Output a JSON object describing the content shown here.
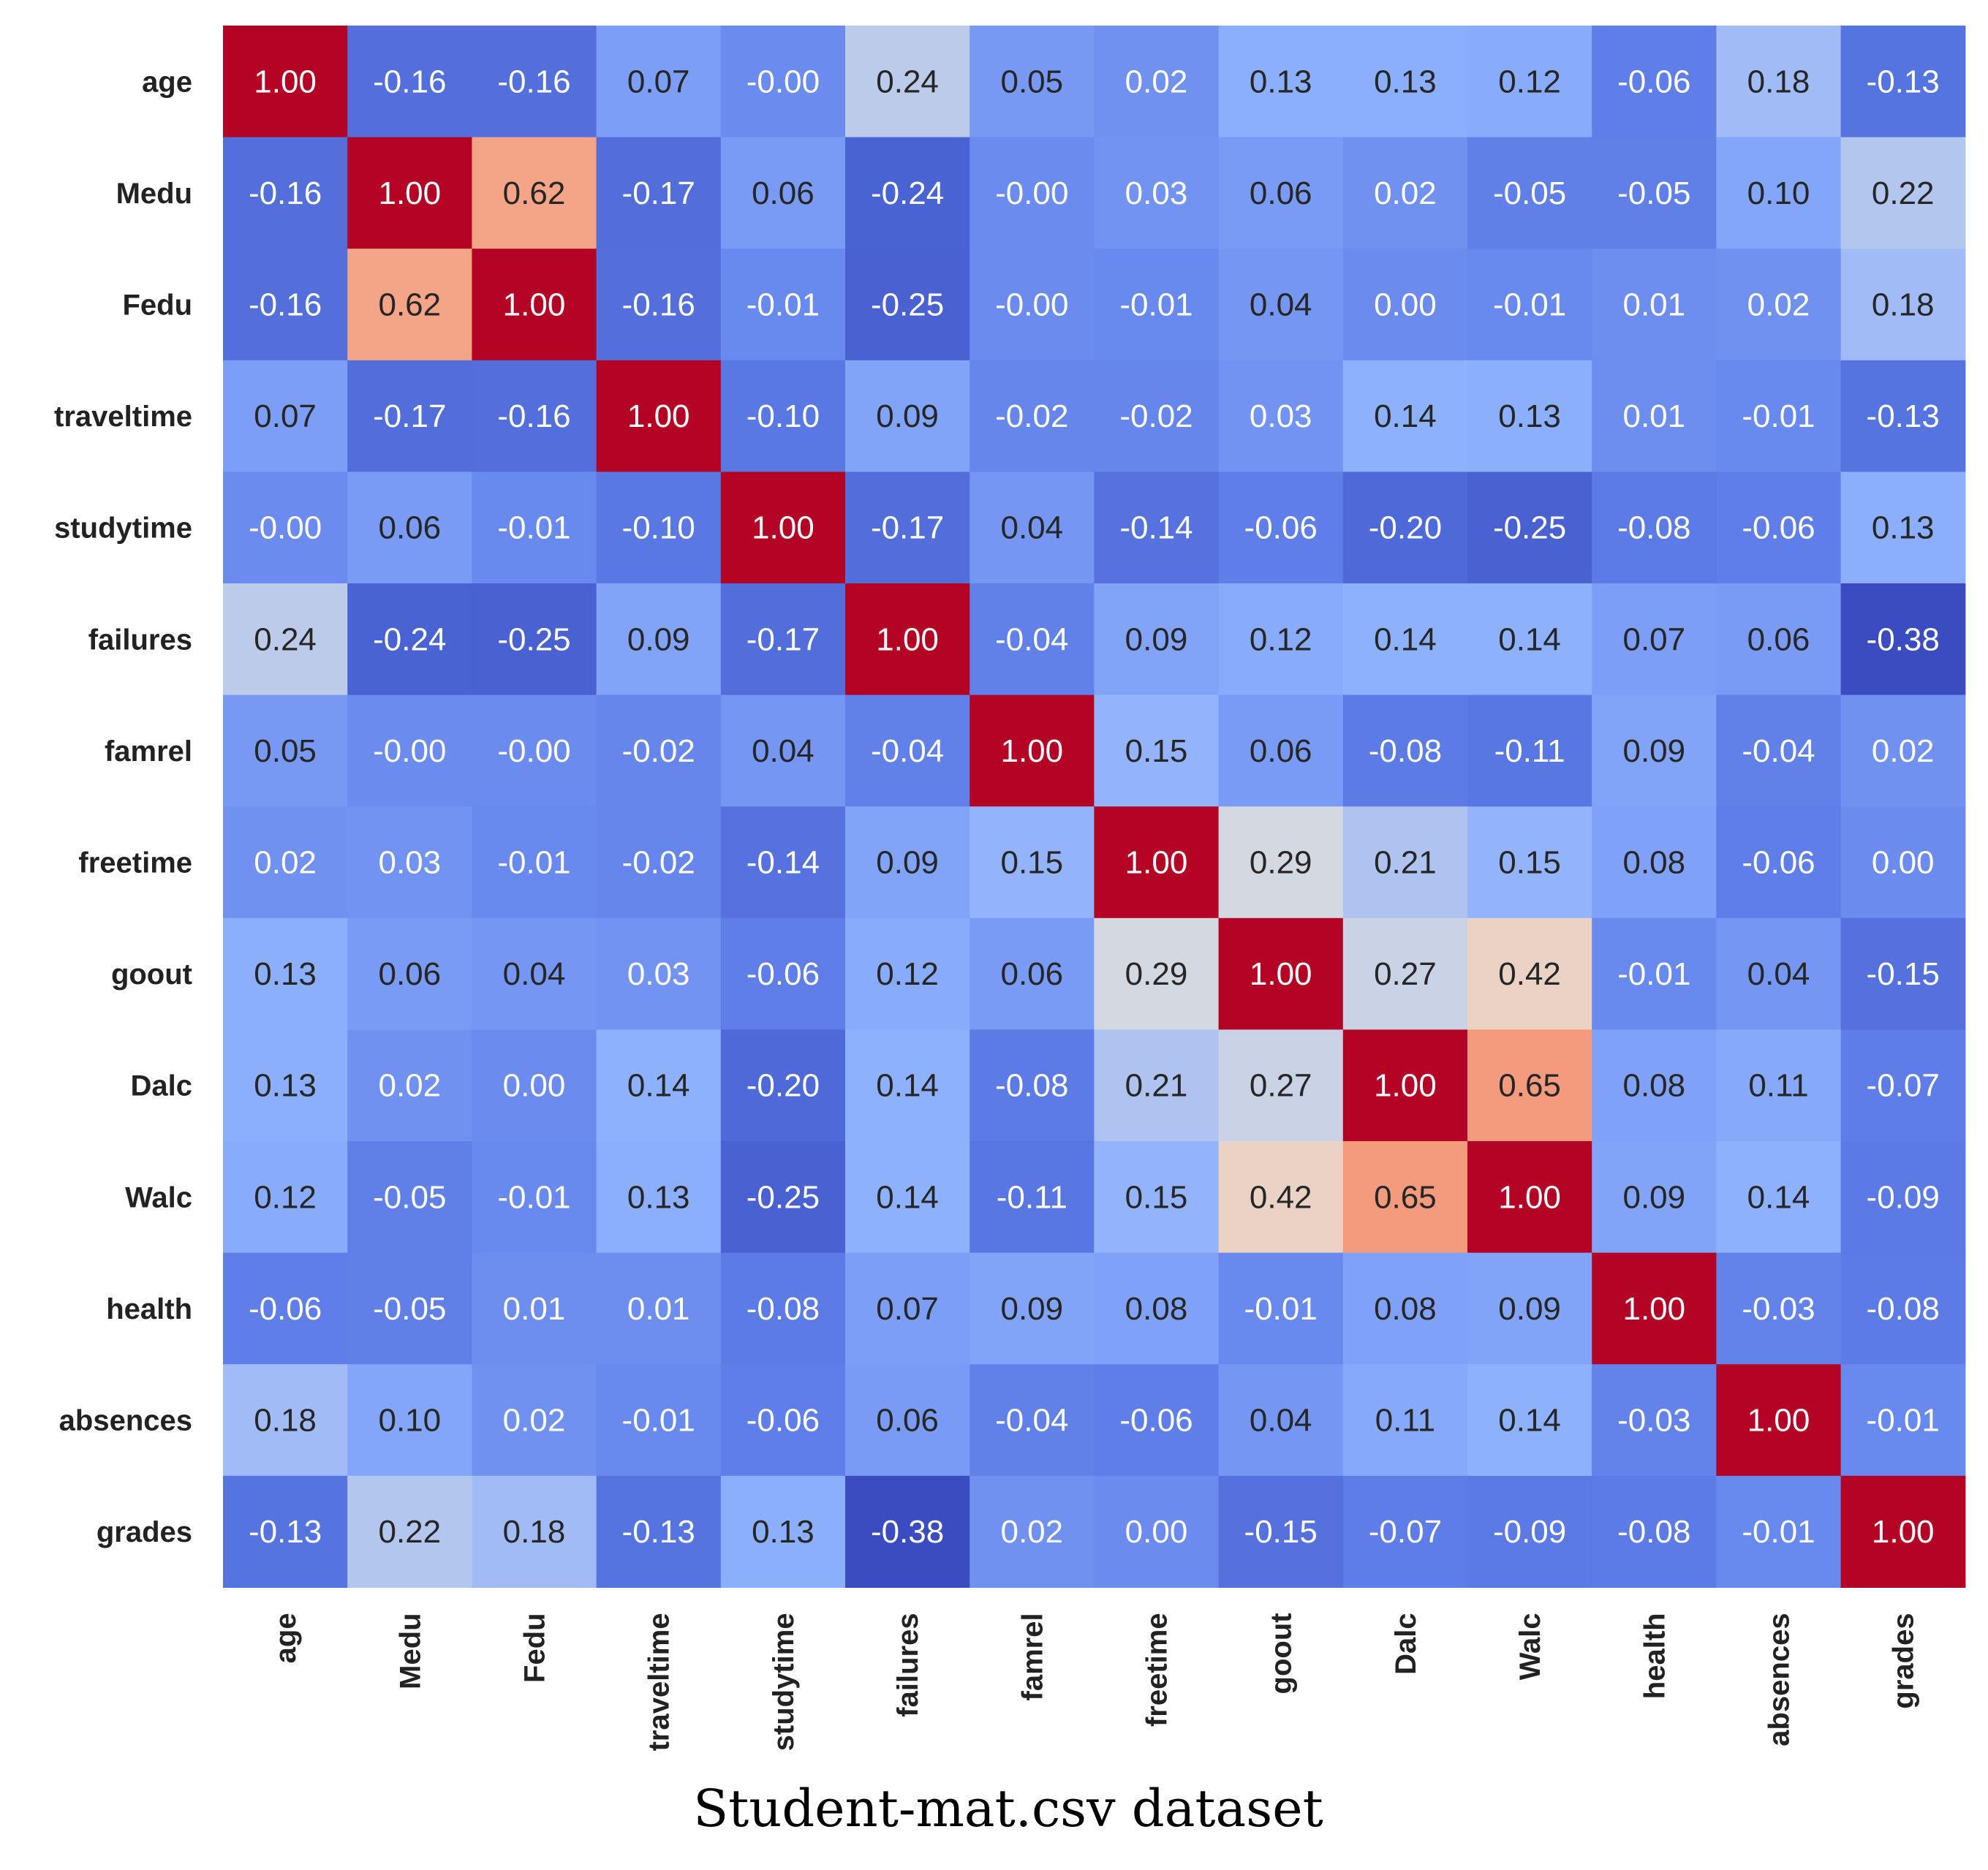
{
  "chart_data": {
    "type": "heatmap",
    "title": "",
    "caption": "Student-mat.csv dataset",
    "colormap": "coolwarm",
    "vmin": -0.38,
    "vmax": 1.0,
    "row_labels": [
      "age",
      "Medu",
      "Fedu",
      "traveltime",
      "studytime",
      "failures",
      "famrel",
      "freetime",
      "goout",
      "Dalc",
      "Walc",
      "health",
      "absences",
      "grades"
    ],
    "col_labels": [
      "age",
      "Medu",
      "Fedu",
      "traveltime",
      "studytime",
      "failures",
      "famrel",
      "freetime",
      "goout",
      "Dalc",
      "Walc",
      "health",
      "absences",
      "grades"
    ],
    "values": [
      [
        1.0,
        -0.16,
        -0.16,
        0.07,
        -0.0,
        0.24,
        0.05,
        0.02,
        0.13,
        0.13,
        0.12,
        -0.06,
        0.18,
        -0.13
      ],
      [
        -0.16,
        1.0,
        0.62,
        -0.17,
        0.06,
        -0.24,
        -0.0,
        0.03,
        0.06,
        0.02,
        -0.05,
        -0.05,
        0.1,
        0.22
      ],
      [
        -0.16,
        0.62,
        1.0,
        -0.16,
        -0.01,
        -0.25,
        -0.0,
        -0.01,
        0.04,
        0.0,
        -0.01,
        0.01,
        0.02,
        0.18
      ],
      [
        0.07,
        -0.17,
        -0.16,
        1.0,
        -0.1,
        0.09,
        -0.02,
        -0.02,
        0.03,
        0.14,
        0.13,
        0.01,
        -0.01,
        -0.13
      ],
      [
        -0.0,
        0.06,
        -0.01,
        -0.1,
        1.0,
        -0.17,
        0.04,
        -0.14,
        -0.06,
        -0.2,
        -0.25,
        -0.08,
        -0.06,
        0.13
      ],
      [
        0.24,
        -0.24,
        -0.25,
        0.09,
        -0.17,
        1.0,
        -0.04,
        0.09,
        0.12,
        0.14,
        0.14,
        0.07,
        0.06,
        -0.38
      ],
      [
        0.05,
        -0.0,
        -0.0,
        -0.02,
        0.04,
        -0.04,
        1.0,
        0.15,
        0.06,
        -0.08,
        -0.11,
        0.09,
        -0.04,
        0.02
      ],
      [
        0.02,
        0.03,
        -0.01,
        -0.02,
        -0.14,
        0.09,
        0.15,
        1.0,
        0.29,
        0.21,
        0.15,
        0.08,
        -0.06,
        0.0
      ],
      [
        0.13,
        0.06,
        0.04,
        0.03,
        -0.06,
        0.12,
        0.06,
        0.29,
        1.0,
        0.27,
        0.42,
        -0.01,
        0.04,
        -0.15
      ],
      [
        0.13,
        0.02,
        0.0,
        0.14,
        -0.2,
        0.14,
        -0.08,
        0.21,
        0.27,
        1.0,
        0.65,
        0.08,
        0.11,
        -0.07
      ],
      [
        0.12,
        -0.05,
        -0.01,
        0.13,
        -0.25,
        0.14,
        -0.11,
        0.15,
        0.42,
        0.65,
        1.0,
        0.09,
        0.14,
        -0.09
      ],
      [
        -0.06,
        -0.05,
        0.01,
        0.01,
        -0.08,
        0.07,
        0.09,
        0.08,
        -0.01,
        0.08,
        0.09,
        1.0,
        -0.03,
        -0.08
      ],
      [
        0.18,
        0.1,
        0.02,
        -0.01,
        -0.06,
        0.06,
        -0.04,
        -0.06,
        0.04,
        0.11,
        0.14,
        -0.03,
        1.0,
        -0.01
      ],
      [
        -0.13,
        0.22,
        0.18,
        -0.13,
        0.13,
        -0.38,
        0.02,
        0.0,
        -0.15,
        -0.07,
        -0.09,
        -0.08,
        -0.01,
        1.0
      ]
    ],
    "value_labels": [
      [
        "1.00",
        "-0.16",
        "-0.16",
        "0.07",
        "-0.00",
        "0.24",
        "0.05",
        "0.02",
        "0.13",
        "0.13",
        "0.12",
        "-0.06",
        "0.18",
        "-0.13"
      ],
      [
        "-0.16",
        "1.00",
        "0.62",
        "-0.17",
        "0.06",
        "-0.24",
        "-0.00",
        "0.03",
        "0.06",
        "0.02",
        "-0.05",
        "-0.05",
        "0.10",
        "0.22"
      ],
      [
        "-0.16",
        "0.62",
        "1.00",
        "-0.16",
        "-0.01",
        "-0.25",
        "-0.00",
        "-0.01",
        "0.04",
        "0.00",
        "-0.01",
        "0.01",
        "0.02",
        "0.18"
      ],
      [
        "0.07",
        "-0.17",
        "-0.16",
        "1.00",
        "-0.10",
        "0.09",
        "-0.02",
        "-0.02",
        "0.03",
        "0.14",
        "0.13",
        "0.01",
        "-0.01",
        "-0.13"
      ],
      [
        "-0.00",
        "0.06",
        "-0.01",
        "-0.10",
        "1.00",
        "-0.17",
        "0.04",
        "-0.14",
        "-0.06",
        "-0.20",
        "-0.25",
        "-0.08",
        "-0.06",
        "0.13"
      ],
      [
        "0.24",
        "-0.24",
        "-0.25",
        "0.09",
        "-0.17",
        "1.00",
        "-0.04",
        "0.09",
        "0.12",
        "0.14",
        "0.14",
        "0.07",
        "0.06",
        "-0.38"
      ],
      [
        "0.05",
        "-0.00",
        "-0.00",
        "-0.02",
        "0.04",
        "-0.04",
        "1.00",
        "0.15",
        "0.06",
        "-0.08",
        "-0.11",
        "0.09",
        "-0.04",
        "0.02"
      ],
      [
        "0.02",
        "0.03",
        "-0.01",
        "-0.02",
        "-0.14",
        "0.09",
        "0.15",
        "1.00",
        "0.29",
        "0.21",
        "0.15",
        "0.08",
        "-0.06",
        "0.00"
      ],
      [
        "0.13",
        "0.06",
        "0.04",
        "0.03",
        "-0.06",
        "0.12",
        "0.06",
        "0.29",
        "1.00",
        "0.27",
        "0.42",
        "-0.01",
        "0.04",
        "-0.15"
      ],
      [
        "0.13",
        "0.02",
        "0.00",
        "0.14",
        "-0.20",
        "0.14",
        "-0.08",
        "0.21",
        "0.27",
        "1.00",
        "0.65",
        "0.08",
        "0.11",
        "-0.07"
      ],
      [
        "0.12",
        "-0.05",
        "-0.01",
        "0.13",
        "-0.25",
        "0.14",
        "-0.11",
        "0.15",
        "0.42",
        "0.65",
        "1.00",
        "0.09",
        "0.14",
        "-0.09"
      ],
      [
        "-0.06",
        "-0.05",
        "0.01",
        "0.01",
        "-0.08",
        "0.07",
        "0.09",
        "0.08",
        "-0.01",
        "0.08",
        "0.09",
        "1.00",
        "-0.03",
        "-0.08"
      ],
      [
        "0.18",
        "0.10",
        "0.02",
        "-0.01",
        "-0.06",
        "0.06",
        "-0.04",
        "-0.06",
        "0.04",
        "0.11",
        "0.14",
        "-0.03",
        "1.00",
        "-0.01"
      ],
      [
        "-0.13",
        "0.22",
        "0.18",
        "-0.13",
        "0.13",
        "-0.38",
        "0.02",
        "0.00",
        "-0.15",
        "-0.07",
        "-0.09",
        "-0.08",
        "-0.01",
        "1.00"
      ]
    ]
  }
}
